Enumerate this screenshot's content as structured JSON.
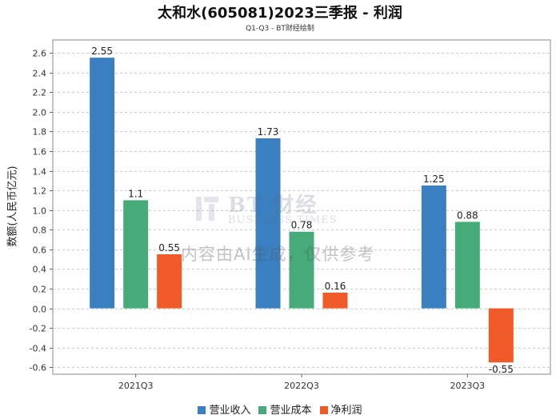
{
  "chart_data": {
    "type": "bar",
    "title": "太和水(605081)2023三季报 - 利润",
    "subtitle": "Q1-Q3 - BT财经绘制",
    "ylabel": "数额(人民币亿元)",
    "xlabel": "",
    "categories": [
      "2021Q3",
      "2022Q3",
      "2023Q3"
    ],
    "series": [
      {
        "name": "营业收入",
        "color": "#3a80c0",
        "values": [
          2.55,
          1.73,
          1.25
        ],
        "labels": [
          "2.55",
          "1.73",
          "1.25"
        ]
      },
      {
        "name": "营业成本",
        "color": "#47ab79",
        "values": [
          1.1,
          0.78,
          0.88
        ],
        "labels": [
          "1.1",
          "0.78",
          "0.88"
        ]
      },
      {
        "name": "净利润",
        "color": "#f05a28",
        "values": [
          0.55,
          0.16,
          -0.55
        ],
        "labels": [
          "0.55",
          "0.16",
          "-0.55"
        ]
      }
    ],
    "yticks": [
      2.6,
      2.4,
      2.2,
      2.0,
      1.8,
      1.6,
      1.4,
      1.2,
      1.0,
      0.8,
      0.6,
      0.4,
      0.2,
      0.0,
      -0.2,
      -0.4,
      -0.6
    ],
    "ytick_labels": [
      "2.6",
      "2.4",
      "2.2",
      "2.0",
      "1.8",
      "1.6",
      "1.4",
      "1.2",
      "1.0",
      "0.8",
      "0.6",
      "0.4",
      "0.2",
      "0.0",
      "-0.2",
      "-0.4",
      "-0.6"
    ],
    "ylim": [
      -0.67,
      2.73
    ],
    "grid": true,
    "legend_position": "bottom"
  },
  "watermark": {
    "brand": "BT 财经",
    "sub": "BUSINESS TIMES",
    "notice": "内容由AI生成，仅供参考"
  }
}
